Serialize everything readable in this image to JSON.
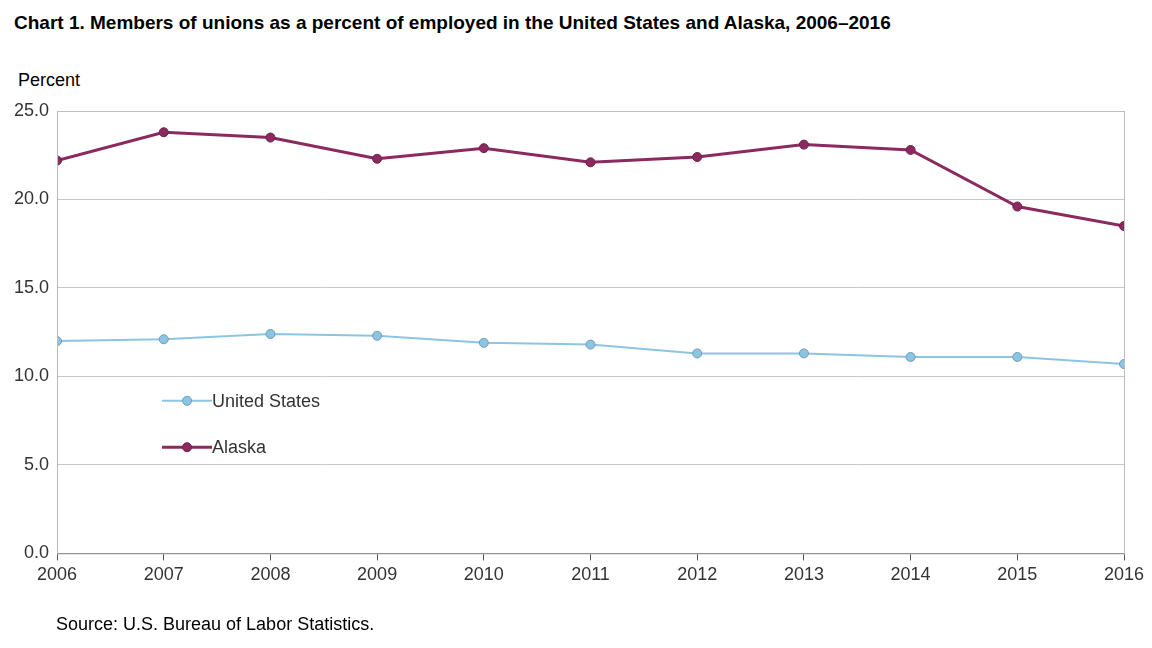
{
  "chart_data": {
    "type": "line",
    "title": "Chart 1. Members of unions as a percent of employed in the United States and Alaska, 2006–2016",
    "ylabel": "Percent",
    "source": "Source: U.S. Bureau of Labor Statistics.",
    "categories": [
      "2006",
      "2007",
      "2008",
      "2009",
      "2010",
      "2011",
      "2012",
      "2013",
      "2014",
      "2015",
      "2016"
    ],
    "series": [
      {
        "name": "United States",
        "color": "#8cc4e4",
        "marker": "circle",
        "values": [
          12.0,
          12.1,
          12.4,
          12.3,
          11.9,
          11.8,
          11.3,
          11.3,
          11.1,
          11.1,
          10.7
        ]
      },
      {
        "name": "Alaska",
        "color": "#8b2a5e",
        "marker": "circle",
        "values": [
          22.2,
          23.8,
          23.5,
          22.3,
          22.9,
          22.1,
          22.4,
          23.1,
          22.8,
          19.6,
          18.5
        ]
      }
    ],
    "ylim": [
      0,
      25
    ],
    "yticks": [
      {
        "value": 0,
        "label": "0.0"
      },
      {
        "value": 5,
        "label": "5.0"
      },
      {
        "value": 10,
        "label": "10.0"
      },
      {
        "value": 15,
        "label": "15.0"
      },
      {
        "value": 20,
        "label": "20.0"
      },
      {
        "value": 25,
        "label": "25.0"
      }
    ],
    "grid": true,
    "legend": "left"
  }
}
